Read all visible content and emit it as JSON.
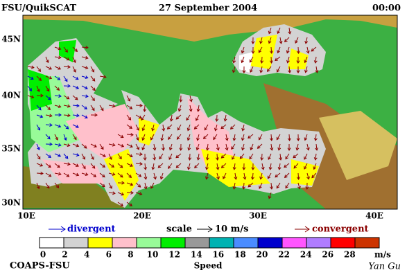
{
  "header": {
    "left": "FSU/QuikSCAT",
    "center": "27 September 2004",
    "right": "00:00"
  },
  "map": {
    "lat_labels": [
      "45N",
      "40N",
      "35N",
      "30N"
    ],
    "lon_labels": [
      "10E",
      "20E",
      "30E",
      "40E"
    ]
  },
  "legend": {
    "divergent": "divergent",
    "scale": "scale",
    "scale_value": "10 m/s",
    "convergent": "convergent"
  },
  "colorbar": {
    "ticks": [
      0,
      2,
      4,
      6,
      8,
      10,
      12,
      14,
      16,
      18,
      20,
      22,
      24,
      26,
      28
    ],
    "unit": "m/s",
    "label": "Speed",
    "colors": [
      "#ffffff",
      "#d3d3d3",
      "#ffff00",
      "#ffc0cb",
      "#98fb98",
      "#00ee00",
      "#999999",
      "#00b2b2",
      "#4a8cff",
      "#0000cd",
      "#ff55ff",
      "#b07cff",
      "#ff0000",
      "#cc3300",
      "#000000"
    ]
  },
  "footer": {
    "left": "COAPS-FSU",
    "right": "Yan Gu"
  }
}
